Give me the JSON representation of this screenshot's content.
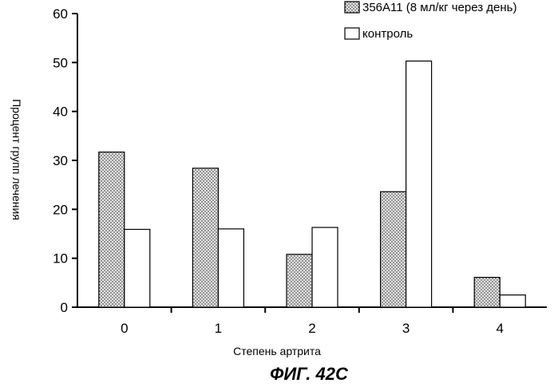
{
  "chart_data": {
    "type": "bar",
    "categories": [
      "0",
      "1",
      "2",
      "3",
      "4"
    ],
    "series": [
      {
        "name": "356A11 (8 мл/кг через день)",
        "values": [
          31.7,
          28.4,
          10.8,
          23.6,
          6.1
        ],
        "pattern": "dotted"
      },
      {
        "name": "контроль",
        "values": [
          15.9,
          16.0,
          16.3,
          50.3,
          2.5
        ],
        "pattern": "empty"
      }
    ],
    "title": "",
    "xlabel": "Степень артрита",
    "ylabel": "Процент групп лечения",
    "ylim": [
      0,
      60
    ],
    "yticks": [
      0,
      10,
      20,
      30,
      40,
      50,
      60
    ],
    "grid": false,
    "legend_position": "top-right"
  },
  "caption": "ФИГ. 42С",
  "colors": {
    "bar_fill_dotted": "#e6e6e6",
    "dot": "#111111",
    "bar_fill_empty": "#ffffff",
    "stroke": "#000000"
  }
}
